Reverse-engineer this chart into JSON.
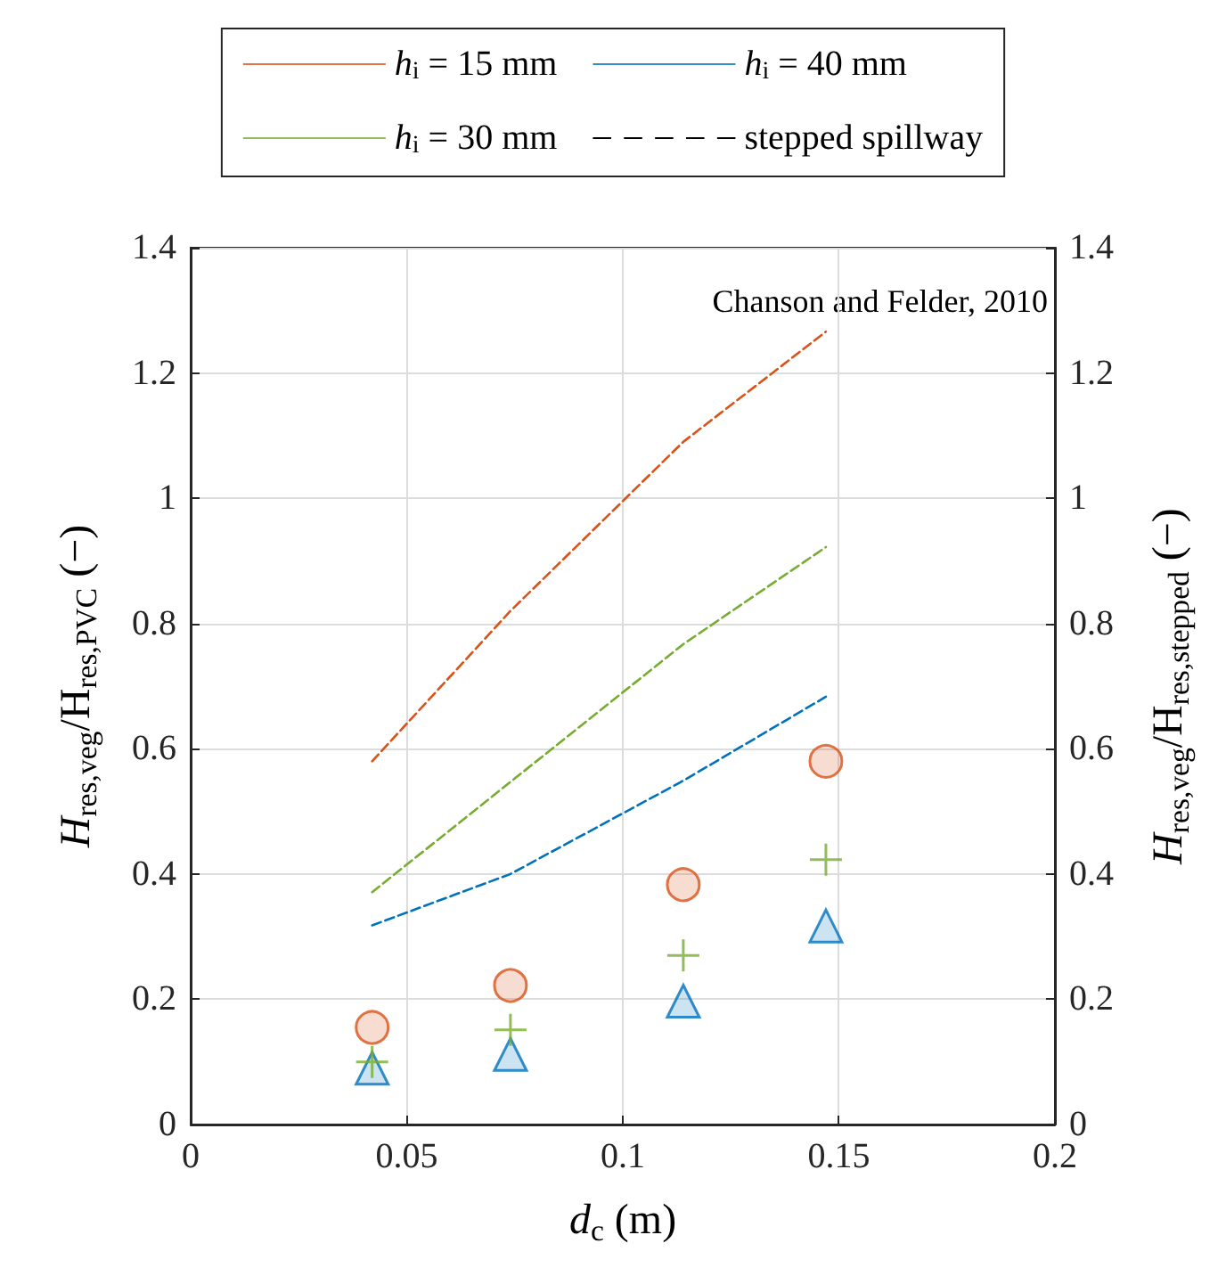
{
  "chart_data": {
    "type": "scatter",
    "xlabel": "d$_{c}$ (m)",
    "ylabel": "H$_{res,veg}$/H$_{res,PVC}$ (−)",
    "y2label": "H$_{res,veg}$/H$_{res,stepped}$ (−)",
    "annotations": [
      "Chanson and Felder, 2010"
    ],
    "x": [
      0.042,
      0.074,
      0.114,
      0.147
    ],
    "series": [
      {
        "name": "h$_{i}$ = 15 mm",
        "color": "#d95319",
        "marker": "circle",
        "values": [
          0.155,
          0.222,
          0.383,
          0.58
        ]
      },
      {
        "name": "h$_{i}$ = 40 mm",
        "color": "#0072bd",
        "marker": "triangle",
        "values": [
          0.09,
          0.112,
          0.197,
          0.317
        ]
      },
      {
        "name": "h$_{i}$ = 30 mm",
        "color": "#77ac30",
        "marker": "cross",
        "values": [
          0.1,
          0.151,
          0.27,
          0.423
        ]
      },
      {
        "name": "stepped spillway",
        "type": "line",
        "color": "#000000",
        "line_style": "dashed",
        "values": [
          null,
          null,
          null,
          null
        ]
      },
      {
        "type": "line",
        "color": "#d95319",
        "line_style": "dashed",
        "values": [
          0.58,
          0.82,
          1.09,
          1.266
        ]
      },
      {
        "type": "line",
        "color": "#77ac30",
        "line_style": "dashed",
        "values": [
          0.371,
          0.547,
          0.767,
          0.922
        ]
      },
      {
        "type": "line",
        "color": "#0072bd",
        "line_style": "dashed",
        "values": [
          0.318,
          0.4,
          0.549,
          0.683
        ]
      }
    ],
    "xlim": [
      0,
      0.2
    ],
    "xticks": [
      0,
      0.05,
      0.1,
      0.15,
      0.2
    ],
    "ylim": [
      0,
      1.4
    ],
    "yticks": [
      0,
      0.2,
      0.4,
      0.6,
      0.8,
      1,
      1.2,
      1.4
    ],
    "y2lim": [
      0,
      1.4
    ],
    "y2ticks": [
      0,
      0.2,
      0.4,
      0.6,
      0.8,
      1,
      1.2,
      1.4
    ],
    "grid": true,
    "legend": "top"
  }
}
